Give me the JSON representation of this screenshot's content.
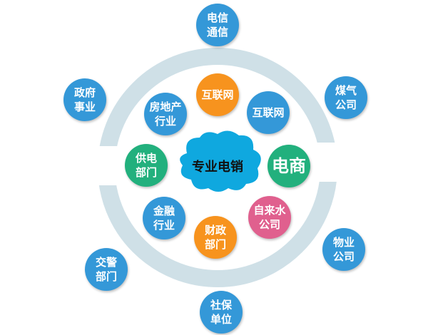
{
  "colors": {
    "blue": "#3498d8",
    "orange": "#f7931e",
    "green": "#22b07d",
    "pink": "#e0608e",
    "cloud": "#0fa8df",
    "ring": "#cfe0e7"
  },
  "center": {
    "label": "专业电销"
  },
  "outer_nodes": [
    {
      "line1": "电信",
      "line2": "通信"
    },
    {
      "line1": "政府",
      "line2": "事业"
    },
    {
      "line1": "煤气",
      "line2": "公司"
    },
    {
      "line1": "物业",
      "line2": "公司"
    },
    {
      "line1": "交警",
      "line2": "部门"
    },
    {
      "line1": "社保",
      "line2": "单位"
    }
  ],
  "inner_nodes": [
    {
      "line1": "互联网",
      "line2": "",
      "color": "orange"
    },
    {
      "line1": "房地产",
      "line2": "行业",
      "color": "blue"
    },
    {
      "line1": "互联网",
      "line2": "",
      "color": "blue"
    },
    {
      "line1": "供电",
      "line2": "部门",
      "color": "green"
    },
    {
      "line1": "电商",
      "line2": "",
      "color": "green"
    },
    {
      "line1": "金融",
      "line2": "行业",
      "color": "blue"
    },
    {
      "line1": "财政",
      "line2": "部门",
      "color": "orange"
    },
    {
      "line1": "自来水",
      "line2": "公司",
      "color": "pink"
    }
  ]
}
